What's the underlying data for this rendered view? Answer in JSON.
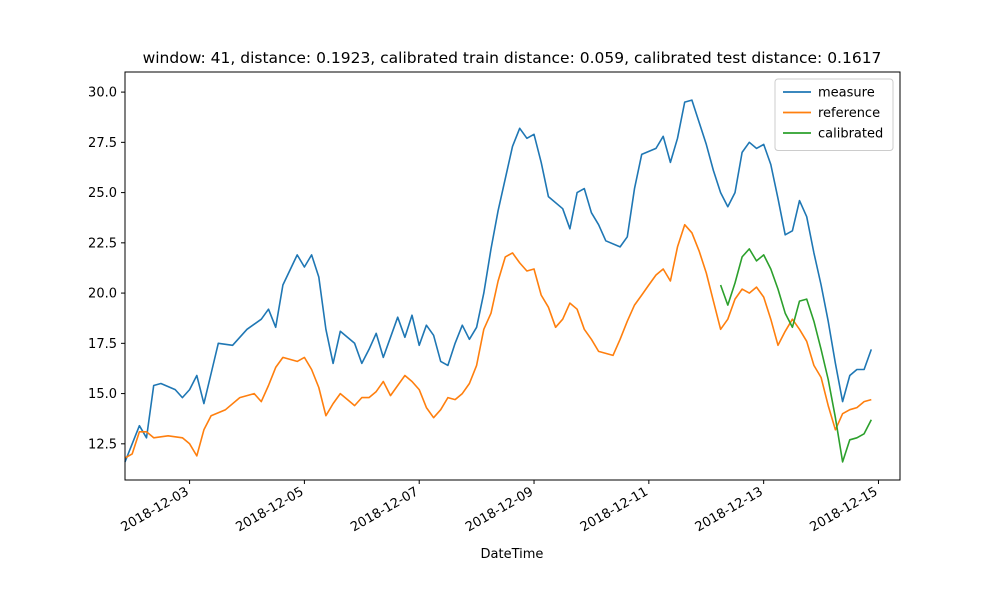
{
  "chart_data": {
    "type": "line",
    "title": "window: 41, distance: 0.1923, calibrated train distance: 0.059, calibrated test distance: 0.1617",
    "xlabel": "DateTime",
    "ylabel": "",
    "x_is_date": true,
    "xlim": [
      "2018-12-01T21:00",
      "2018-12-15T09:00"
    ],
    "ylim": [
      10.7,
      31.0
    ],
    "x_ticks": [
      "2018-12-03",
      "2018-12-05",
      "2018-12-07",
      "2018-12-09",
      "2018-12-11",
      "2018-12-13",
      "2018-12-15"
    ],
    "y_ticks": [
      "12.5",
      "15.0",
      "17.5",
      "20.0",
      "22.5",
      "25.0",
      "27.5",
      "30.0"
    ],
    "legend": {
      "position": "top-right",
      "entries": [
        "measure",
        "reference",
        "calibrated"
      ]
    },
    "grid": false,
    "series": [
      {
        "name": "measure",
        "color": "#1f77b4",
        "points": [
          [
            "2018-12-01T21:00",
            11.6
          ],
          [
            "2018-12-02T00:00",
            12.5
          ],
          [
            "2018-12-02T03:00",
            13.4
          ],
          [
            "2018-12-02T06:00",
            12.8
          ],
          [
            "2018-12-02T09:00",
            15.4
          ],
          [
            "2018-12-02T12:00",
            15.5
          ],
          [
            "2018-12-02T18:00",
            15.2
          ],
          [
            "2018-12-02T21:00",
            14.8
          ],
          [
            "2018-12-03T00:00",
            15.2
          ],
          [
            "2018-12-03T03:00",
            15.9
          ],
          [
            "2018-12-03T06:00",
            14.5
          ],
          [
            "2018-12-03T09:00",
            16.0
          ],
          [
            "2018-12-03T12:00",
            17.5
          ],
          [
            "2018-12-03T18:00",
            17.4
          ],
          [
            "2018-12-04T00:00",
            18.2
          ],
          [
            "2018-12-04T06:00",
            18.7
          ],
          [
            "2018-12-04T09:00",
            19.2
          ],
          [
            "2018-12-04T12:00",
            18.3
          ],
          [
            "2018-12-04T15:00",
            20.4
          ],
          [
            "2018-12-04T21:00",
            21.9
          ],
          [
            "2018-12-05T00:00",
            21.3
          ],
          [
            "2018-12-05T03:00",
            21.9
          ],
          [
            "2018-12-05T06:00",
            20.8
          ],
          [
            "2018-12-05T09:00",
            18.2
          ],
          [
            "2018-12-05T12:00",
            16.5
          ],
          [
            "2018-12-05T15:00",
            18.1
          ],
          [
            "2018-12-05T21:00",
            17.5
          ],
          [
            "2018-12-06T00:00",
            16.5
          ],
          [
            "2018-12-06T03:00",
            17.2
          ],
          [
            "2018-12-06T06:00",
            18.0
          ],
          [
            "2018-12-06T09:00",
            16.8
          ],
          [
            "2018-12-06T12:00",
            17.8
          ],
          [
            "2018-12-06T15:00",
            18.8
          ],
          [
            "2018-12-06T18:00",
            17.8
          ],
          [
            "2018-12-06T21:00",
            18.9
          ],
          [
            "2018-12-07T00:00",
            17.4
          ],
          [
            "2018-12-07T03:00",
            18.4
          ],
          [
            "2018-12-07T06:00",
            17.9
          ],
          [
            "2018-12-07T09:00",
            16.6
          ],
          [
            "2018-12-07T12:00",
            16.4
          ],
          [
            "2018-12-07T15:00",
            17.5
          ],
          [
            "2018-12-07T18:00",
            18.4
          ],
          [
            "2018-12-07T21:00",
            17.7
          ],
          [
            "2018-12-08T00:00",
            18.3
          ],
          [
            "2018-12-08T03:00",
            20.0
          ],
          [
            "2018-12-08T06:00",
            22.2
          ],
          [
            "2018-12-08T09:00",
            24.1
          ],
          [
            "2018-12-08T15:00",
            27.3
          ],
          [
            "2018-12-08T18:00",
            28.2
          ],
          [
            "2018-12-08T21:00",
            27.7
          ],
          [
            "2018-12-09T00:00",
            27.9
          ],
          [
            "2018-12-09T03:00",
            26.5
          ],
          [
            "2018-12-09T06:00",
            24.8
          ],
          [
            "2018-12-09T12:00",
            24.2
          ],
          [
            "2018-12-09T15:00",
            23.2
          ],
          [
            "2018-12-09T18:00",
            25.0
          ],
          [
            "2018-12-09T21:00",
            25.2
          ],
          [
            "2018-12-10T00:00",
            24.0
          ],
          [
            "2018-12-10T03:00",
            23.4
          ],
          [
            "2018-12-10T06:00",
            22.6
          ],
          [
            "2018-12-10T12:00",
            22.3
          ],
          [
            "2018-12-10T15:00",
            22.8
          ],
          [
            "2018-12-10T18:00",
            25.2
          ],
          [
            "2018-12-10T21:00",
            26.9
          ],
          [
            "2018-12-11T03:00",
            27.2
          ],
          [
            "2018-12-11T06:00",
            27.8
          ],
          [
            "2018-12-11T09:00",
            26.5
          ],
          [
            "2018-12-11T12:00",
            27.7
          ],
          [
            "2018-12-11T15:00",
            29.5
          ],
          [
            "2018-12-11T18:00",
            29.6
          ],
          [
            "2018-12-11T21:00",
            28.5
          ],
          [
            "2018-12-12T00:00",
            27.4
          ],
          [
            "2018-12-12T03:00",
            26.1
          ],
          [
            "2018-12-12T06:00",
            25.0
          ],
          [
            "2018-12-12T09:00",
            24.3
          ],
          [
            "2018-12-12T12:00",
            25.0
          ],
          [
            "2018-12-12T15:00",
            27.0
          ],
          [
            "2018-12-12T18:00",
            27.5
          ],
          [
            "2018-12-12T21:00",
            27.2
          ],
          [
            "2018-12-13T00:00",
            27.4
          ],
          [
            "2018-12-13T03:00",
            26.4
          ],
          [
            "2018-12-13T06:00",
            24.7
          ],
          [
            "2018-12-13T09:00",
            22.9
          ],
          [
            "2018-12-13T12:00",
            23.1
          ],
          [
            "2018-12-13T15:00",
            24.6
          ],
          [
            "2018-12-13T18:00",
            23.8
          ],
          [
            "2018-12-13T21:00",
            22.0
          ],
          [
            "2018-12-14T00:00",
            20.4
          ],
          [
            "2018-12-14T03:00",
            18.6
          ],
          [
            "2018-12-14T06:00",
            16.5
          ],
          [
            "2018-12-14T09:00",
            14.6
          ],
          [
            "2018-12-14T12:00",
            15.9
          ],
          [
            "2018-12-14T15:00",
            16.2
          ],
          [
            "2018-12-14T18:00",
            16.2
          ],
          [
            "2018-12-14T21:00",
            17.2
          ]
        ]
      },
      {
        "name": "reference",
        "color": "#ff7f0e",
        "points": [
          [
            "2018-12-01T21:00",
            11.8
          ],
          [
            "2018-12-02T00:00",
            12.0
          ],
          [
            "2018-12-02T03:00",
            13.1
          ],
          [
            "2018-12-02T06:00",
            13.1
          ],
          [
            "2018-12-02T09:00",
            12.8
          ],
          [
            "2018-12-02T15:00",
            12.9
          ],
          [
            "2018-12-02T21:00",
            12.8
          ],
          [
            "2018-12-03T00:00",
            12.5
          ],
          [
            "2018-12-03T03:00",
            11.9
          ],
          [
            "2018-12-03T06:00",
            13.2
          ],
          [
            "2018-12-03T09:00",
            13.9
          ],
          [
            "2018-12-03T15:00",
            14.2
          ],
          [
            "2018-12-03T21:00",
            14.8
          ],
          [
            "2018-12-04T03:00",
            15.0
          ],
          [
            "2018-12-04T06:00",
            14.6
          ],
          [
            "2018-12-04T09:00",
            15.4
          ],
          [
            "2018-12-04T12:00",
            16.3
          ],
          [
            "2018-12-04T15:00",
            16.8
          ],
          [
            "2018-12-04T21:00",
            16.6
          ],
          [
            "2018-12-05T00:00",
            16.8
          ],
          [
            "2018-12-05T03:00",
            16.2
          ],
          [
            "2018-12-05T06:00",
            15.3
          ],
          [
            "2018-12-05T09:00",
            13.9
          ],
          [
            "2018-12-05T12:00",
            14.5
          ],
          [
            "2018-12-05T15:00",
            15.0
          ],
          [
            "2018-12-05T18:00",
            14.7
          ],
          [
            "2018-12-05T21:00",
            14.4
          ],
          [
            "2018-12-06T00:00",
            14.8
          ],
          [
            "2018-12-06T03:00",
            14.8
          ],
          [
            "2018-12-06T06:00",
            15.1
          ],
          [
            "2018-12-06T09:00",
            15.6
          ],
          [
            "2018-12-06T12:00",
            14.9
          ],
          [
            "2018-12-06T15:00",
            15.4
          ],
          [
            "2018-12-06T18:00",
            15.9
          ],
          [
            "2018-12-06T21:00",
            15.6
          ],
          [
            "2018-12-07T00:00",
            15.2
          ],
          [
            "2018-12-07T03:00",
            14.3
          ],
          [
            "2018-12-07T06:00",
            13.8
          ],
          [
            "2018-12-07T09:00",
            14.2
          ],
          [
            "2018-12-07T12:00",
            14.8
          ],
          [
            "2018-12-07T15:00",
            14.7
          ],
          [
            "2018-12-07T18:00",
            15.0
          ],
          [
            "2018-12-07T21:00",
            15.5
          ],
          [
            "2018-12-08T00:00",
            16.4
          ],
          [
            "2018-12-08T03:00",
            18.2
          ],
          [
            "2018-12-08T06:00",
            19.0
          ],
          [
            "2018-12-08T09:00",
            20.6
          ],
          [
            "2018-12-08T12:00",
            21.8
          ],
          [
            "2018-12-08T15:00",
            22.0
          ],
          [
            "2018-12-08T18:00",
            21.5
          ],
          [
            "2018-12-08T21:00",
            21.1
          ],
          [
            "2018-12-09T00:00",
            21.2
          ],
          [
            "2018-12-09T03:00",
            19.9
          ],
          [
            "2018-12-09T06:00",
            19.3
          ],
          [
            "2018-12-09T09:00",
            18.3
          ],
          [
            "2018-12-09T12:00",
            18.7
          ],
          [
            "2018-12-09T15:00",
            19.5
          ],
          [
            "2018-12-09T18:00",
            19.2
          ],
          [
            "2018-12-09T21:00",
            18.2
          ],
          [
            "2018-12-10T00:00",
            17.7
          ],
          [
            "2018-12-10T03:00",
            17.1
          ],
          [
            "2018-12-10T06:00",
            17.0
          ],
          [
            "2018-12-10T09:00",
            16.9
          ],
          [
            "2018-12-10T12:00",
            17.7
          ],
          [
            "2018-12-10T15:00",
            18.6
          ],
          [
            "2018-12-10T18:00",
            19.4
          ],
          [
            "2018-12-10T21:00",
            19.9
          ],
          [
            "2018-12-11T00:00",
            20.4
          ],
          [
            "2018-12-11T03:00",
            20.9
          ],
          [
            "2018-12-11T06:00",
            21.2
          ],
          [
            "2018-12-11T09:00",
            20.6
          ],
          [
            "2018-12-11T12:00",
            22.3
          ],
          [
            "2018-12-11T15:00",
            23.4
          ],
          [
            "2018-12-11T18:00",
            23.0
          ],
          [
            "2018-12-11T21:00",
            22.1
          ],
          [
            "2018-12-12T00:00",
            21.0
          ],
          [
            "2018-12-12T03:00",
            19.6
          ],
          [
            "2018-12-12T06:00",
            18.2
          ],
          [
            "2018-12-12T09:00",
            18.7
          ],
          [
            "2018-12-12T12:00",
            19.7
          ],
          [
            "2018-12-12T15:00",
            20.2
          ],
          [
            "2018-12-12T18:00",
            20.0
          ],
          [
            "2018-12-12T21:00",
            20.3
          ],
          [
            "2018-12-13T00:00",
            19.8
          ],
          [
            "2018-12-13T03:00",
            18.7
          ],
          [
            "2018-12-13T06:00",
            17.4
          ],
          [
            "2018-12-13T09:00",
            18.1
          ],
          [
            "2018-12-13T12:00",
            18.7
          ],
          [
            "2018-12-13T15:00",
            18.2
          ],
          [
            "2018-12-13T18:00",
            17.6
          ],
          [
            "2018-12-13T21:00",
            16.4
          ],
          [
            "2018-12-14T00:00",
            15.8
          ],
          [
            "2018-12-14T03:00",
            14.4
          ],
          [
            "2018-12-14T06:00",
            13.2
          ],
          [
            "2018-12-14T09:00",
            14.0
          ],
          [
            "2018-12-14T12:00",
            14.2
          ],
          [
            "2018-12-14T15:00",
            14.3
          ],
          [
            "2018-12-14T18:00",
            14.6
          ],
          [
            "2018-12-14T21:00",
            14.7
          ]
        ]
      },
      {
        "name": "calibrated",
        "color": "#2ca02c",
        "points": [
          [
            "2018-12-12T06:00",
            20.4
          ],
          [
            "2018-12-12T09:00",
            19.4
          ],
          [
            "2018-12-12T12:00",
            20.5
          ],
          [
            "2018-12-12T15:00",
            21.8
          ],
          [
            "2018-12-12T18:00",
            22.2
          ],
          [
            "2018-12-12T21:00",
            21.6
          ],
          [
            "2018-12-13T00:00",
            21.9
          ],
          [
            "2018-12-13T03:00",
            21.2
          ],
          [
            "2018-12-13T06:00",
            20.2
          ],
          [
            "2018-12-13T09:00",
            19.0
          ],
          [
            "2018-12-13T12:00",
            18.3
          ],
          [
            "2018-12-13T15:00",
            19.6
          ],
          [
            "2018-12-13T18:00",
            19.7
          ],
          [
            "2018-12-13T21:00",
            18.6
          ],
          [
            "2018-12-14T00:00",
            17.2
          ],
          [
            "2018-12-14T03:00",
            15.7
          ],
          [
            "2018-12-14T06:00",
            13.8
          ],
          [
            "2018-12-14T09:00",
            11.6
          ],
          [
            "2018-12-14T12:00",
            12.7
          ],
          [
            "2018-12-14T15:00",
            12.8
          ],
          [
            "2018-12-14T18:00",
            13.0
          ],
          [
            "2018-12-14T21:00",
            13.7
          ]
        ]
      }
    ]
  }
}
